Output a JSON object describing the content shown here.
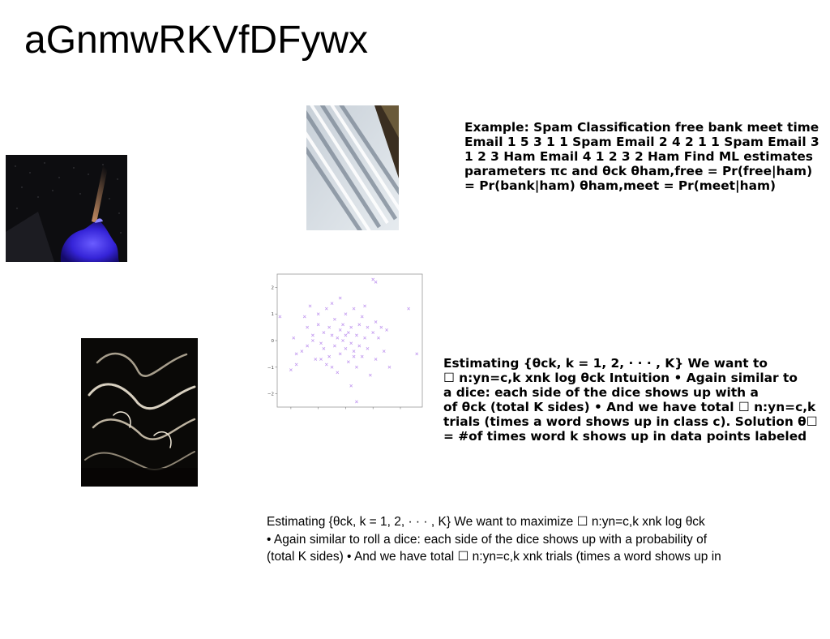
{
  "page": {
    "title": "aGnmwRKVfDFywx"
  },
  "images": [
    {
      "name": "night-sky-blue-rock-photo",
      "description": ""
    },
    {
      "name": "white-slanted-architecture-photo",
      "description": ""
    },
    {
      "name": "dark-abstract-swirl-photo",
      "description": ""
    }
  ],
  "text_blocks": {
    "spam_example": {
      "lines": [
        "Example: Spam Classification free bank meet time",
        "Email 1 5 3 1 1 Spam Email 2 4 2 1 1 Spam Email 3",
        "1 2 3 Ham Email 4 1 2 3 2 Ham Find ML estimates",
        "parameters πc and θck θham,free = Pr(free|ham)",
        "= Pr(bank|ham) θham,meet = Pr(meet|ham)"
      ]
    },
    "estimating_bold": {
      "lines": [
        "Estimating {θck, k = 1, 2, · · · , K} We want to",
        "☐ n:yn=c,k xnk log θck Intuition • Again similar to",
        "a dice: each side of the dice shows up with a",
        "of θck (total K sides) • And we have total ☐ n:yn=c,k",
        "trials (times a word shows up in class c). Solution θ☐",
        "= #of times word k shows up in data points labeled"
      ]
    },
    "estimating_plain": {
      "lines": [
        "Estimating {θck, k = 1, 2, · · · , K} We want to maximize ☐ n:yn=c,k xnk log θck",
        "• Again similar to roll a dice: each side of the dice shows up with a probability of",
        "(total K sides) • And we have total ☐ n:yn=c,k xnk trials (times a word shows up in"
      ]
    }
  },
  "chart_data": {
    "type": "scatter",
    "title": "",
    "xlabel": "",
    "ylabel": "",
    "xlim": [
      -2.5,
      2.8
    ],
    "ylim": [
      -2.5,
      2.5
    ],
    "xticks": [
      "−2",
      "−1",
      "0",
      "1",
      "2"
    ],
    "yticks": [
      "2",
      "1",
      "0",
      "−1",
      "−2"
    ],
    "grid": false,
    "marker": "x",
    "color": "#c39bf0",
    "points": [
      [
        -2.4,
        0.9
      ],
      [
        -2.0,
        -1.1
      ],
      [
        -1.9,
        0.1
      ],
      [
        -1.8,
        -0.5
      ],
      [
        -1.8,
        -0.9
      ],
      [
        -1.6,
        -0.4
      ],
      [
        -1.5,
        0.9
      ],
      [
        -1.4,
        0.5
      ],
      [
        -1.4,
        -0.2
      ],
      [
        -1.3,
        1.3
      ],
      [
        -1.2,
        0.2
      ],
      [
        -1.1,
        -0.7
      ],
      [
        -1.0,
        1.0
      ],
      [
        -1.0,
        0.6
      ],
      [
        -0.9,
        -0.1
      ],
      [
        -0.8,
        0.3
      ],
      [
        -0.8,
        -0.3
      ],
      [
        -0.7,
        1.2
      ],
      [
        -0.7,
        -0.9
      ],
      [
        -0.6,
        0.5
      ],
      [
        -0.6,
        -0.6
      ],
      [
        -0.5,
        0.2
      ],
      [
        -0.5,
        1.4
      ],
      [
        -0.4,
        -0.2
      ],
      [
        -0.4,
        0.8
      ],
      [
        -0.3,
        0.1
      ],
      [
        -0.3,
        -1.2
      ],
      [
        -0.2,
        0.4
      ],
      [
        -0.2,
        -0.5
      ],
      [
        -0.1,
        0.0
      ],
      [
        -0.1,
        0.6
      ],
      [
        0.0,
        -0.3
      ],
      [
        0.0,
        1.0
      ],
      [
        0.1,
        0.3
      ],
      [
        0.1,
        -0.8
      ],
      [
        0.2,
        0.5
      ],
      [
        0.2,
        -0.1
      ],
      [
        0.3,
        1.2
      ],
      [
        0.3,
        -0.4
      ],
      [
        0.4,
        0.2
      ],
      [
        0.4,
        -1.0
      ],
      [
        0.5,
        0.6
      ],
      [
        0.5,
        -0.2
      ],
      [
        0.6,
        0.9
      ],
      [
        0.6,
        -0.6
      ],
      [
        0.7,
        0.1
      ],
      [
        0.8,
        -0.3
      ],
      [
        0.8,
        0.5
      ],
      [
        0.9,
        -1.3
      ],
      [
        1.0,
        0.3
      ],
      [
        1.1,
        0.7
      ],
      [
        1.1,
        -0.7
      ],
      [
        1.2,
        0.1
      ],
      [
        1.3,
        0.5
      ],
      [
        1.4,
        -0.4
      ],
      [
        1.0,
        2.3
      ],
      [
        1.1,
        2.2
      ],
      [
        0.4,
        -2.3
      ],
      [
        0.2,
        -1.7
      ],
      [
        1.6,
        -1.0
      ],
      [
        2.3,
        1.2
      ],
      [
        2.6,
        -0.5
      ],
      [
        -0.9,
        -0.7
      ],
      [
        0.0,
        0.2
      ],
      [
        0.3,
        -0.6
      ],
      [
        -0.5,
        -1.0
      ],
      [
        0.7,
        1.3
      ],
      [
        -1.2,
        0.0
      ],
      [
        1.5,
        0.4
      ],
      [
        -0.2,
        1.6
      ]
    ]
  }
}
